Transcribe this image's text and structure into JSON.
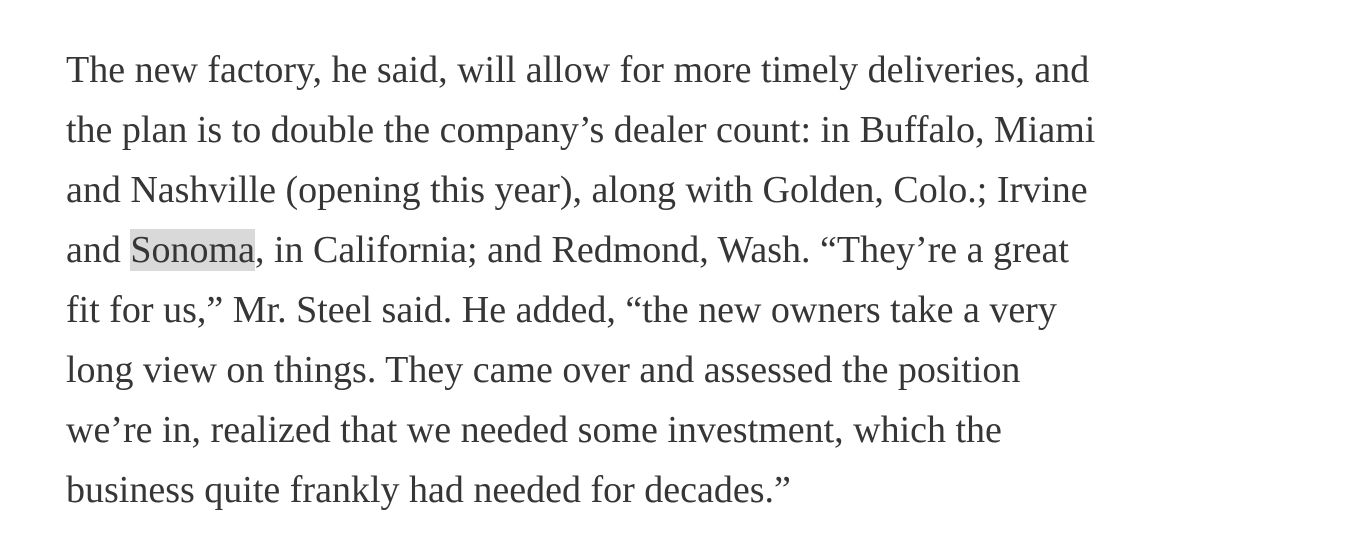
{
  "article": {
    "lines": [
      {
        "text": "The new factory, he said, will allow for more timely deliveries, and"
      },
      {
        "text": "the plan is to double the company’s dealer count: in Buffalo, Miami"
      },
      {
        "text": "and Nashville (opening this year), along with Golden, Colo.; Irvine"
      },
      {
        "before": "and ",
        "highlight": "Sonoma",
        "after": ", in California; and Redmond, Wash. “They’re a great"
      },
      {
        "text": "fit for us,” Mr. Steel said. He added, “the new owners take a very"
      },
      {
        "text": "long view on things. They came over and assessed the position"
      },
      {
        "text": "we’re in, realized that we needed some investment, which the"
      },
      {
        "text": "business quite frankly had needed for decades.”"
      }
    ],
    "highlight_color": "#d9d9d9",
    "text_color": "#363636"
  }
}
